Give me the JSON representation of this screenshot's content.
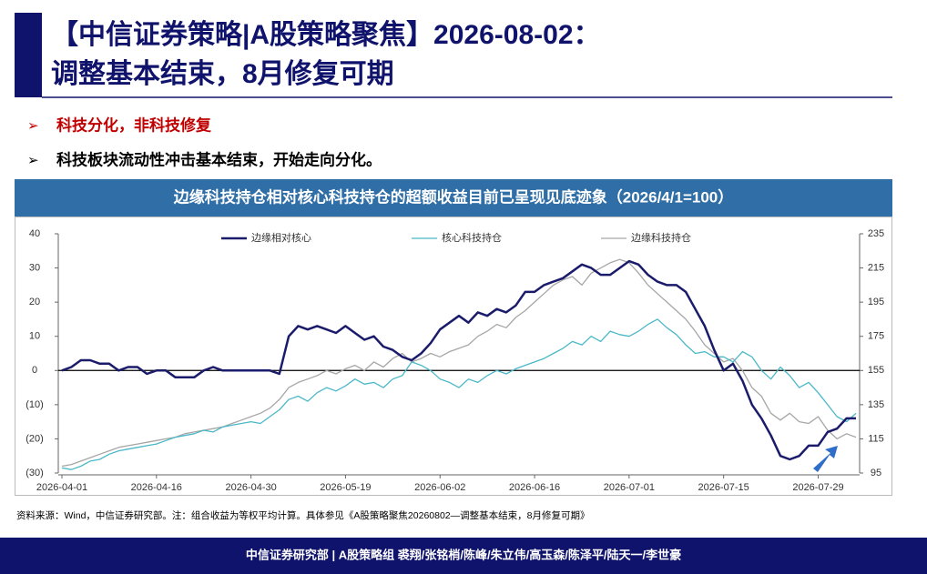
{
  "header": {
    "title": [
      "【中信证券策略|A股策略聚焦】2026-08-02：",
      "调整基本结束，8月修复可期"
    ]
  },
  "bullets": [
    "科技分化，非科技修复",
    "科技板块流动性冲击基本结束，开始走向分化。"
  ],
  "chart_data": {
    "type": "line",
    "title": "边缘科技持仓相对核心科技持仓的超额收益目前已呈现见底迹象（2026/4/1=100）",
    "categories": [
      "2026-04-01",
      null,
      null,
      null,
      null,
      null,
      null,
      null,
      null,
      null,
      "2026-04-16",
      null,
      null,
      null,
      null,
      null,
      null,
      null,
      null,
      null,
      "2026-04-30",
      null,
      null,
      null,
      null,
      null,
      null,
      null,
      null,
      null,
      "2026-05-19",
      null,
      null,
      null,
      null,
      null,
      null,
      null,
      null,
      null,
      "2026-06-02",
      null,
      null,
      null,
      null,
      null,
      null,
      null,
      null,
      null,
      "2026-06-16",
      null,
      null,
      null,
      null,
      null,
      null,
      null,
      null,
      null,
      "2026-07-01",
      null,
      null,
      null,
      null,
      null,
      null,
      null,
      null,
      null,
      "2026-07-15",
      null,
      null,
      null,
      null,
      null,
      null,
      null,
      null,
      null,
      "2026-07-29",
      null,
      null,
      null,
      null
    ],
    "series": [
      {
        "name": "边缘相对核心",
        "color": "#1b1b6b",
        "values": [
          0,
          1,
          3,
          3,
          2,
          2,
          0,
          1,
          1,
          -1,
          0,
          0,
          -2,
          -2,
          -2,
          0,
          1,
          0,
          0,
          0,
          0,
          0,
          0,
          -1,
          10,
          13,
          12,
          13,
          12,
          11,
          13,
          11,
          9,
          10,
          7,
          6,
          4,
          3,
          5,
          8,
          12,
          14,
          16,
          14,
          17,
          16,
          18,
          17,
          19,
          23,
          23,
          25,
          26,
          27,
          29,
          31,
          30,
          28,
          28,
          30,
          32,
          31,
          28,
          26,
          25,
          25,
          23,
          18,
          13,
          6,
          0,
          2,
          -3,
          -10,
          -14,
          -19,
          -25,
          -26,
          -25,
          -22,
          -22,
          -18,
          -17,
          -14,
          -14
        ]
      },
      {
        "name": "核心科技持仓",
        "color": "#4ab8c8",
        "axis": "y2",
        "values": [
          98,
          97,
          99,
          102,
          103,
          106,
          108,
          109,
          110,
          111,
          112,
          114,
          116,
          117,
          118,
          120,
          119,
          122,
          123,
          124,
          125,
          124,
          128,
          132,
          138,
          140,
          137,
          142,
          145,
          143,
          146,
          150,
          147,
          148,
          145,
          150,
          152,
          160,
          158,
          155,
          150,
          148,
          145,
          150,
          148,
          152,
          155,
          153,
          156,
          158,
          160,
          162,
          165,
          168,
          172,
          170,
          175,
          172,
          178,
          176,
          175,
          178,
          182,
          185,
          180,
          176,
          170,
          165,
          166,
          163,
          163,
          160,
          166,
          163,
          155,
          150,
          157,
          152,
          145,
          148,
          142,
          135,
          128,
          125,
          130
        ]
      },
      {
        "name": "边缘科技持仓",
        "color": "#a6a6a6",
        "axis": "y2",
        "values": [
          99,
          100,
          102,
          104,
          106,
          108,
          110,
          111,
          112,
          113,
          114,
          115,
          116,
          118,
          119,
          120,
          121,
          122,
          124,
          126,
          128,
          130,
          133,
          138,
          145,
          148,
          150,
          152,
          155,
          153,
          156,
          158,
          155,
          160,
          157,
          162,
          165,
          160,
          162,
          165,
          163,
          166,
          168,
          170,
          175,
          178,
          182,
          180,
          186,
          190,
          195,
          200,
          205,
          208,
          210,
          205,
          212,
          215,
          218,
          220,
          218,
          212,
          205,
          200,
          195,
          190,
          185,
          178,
          170,
          165,
          160,
          162,
          155,
          145,
          140,
          130,
          126,
          130,
          125,
          124,
          128,
          120,
          115,
          118,
          116
        ]
      }
    ],
    "ylim": [
      -30,
      40
    ],
    "yticks": [
      40,
      30,
      20,
      10,
      0,
      {
        "value": -10,
        "label": "(10)"
      },
      {
        "value": -20,
        "label": "(20)"
      },
      {
        "value": -30,
        "label": "(30)"
      }
    ],
    "y2lim": [
      95,
      235
    ],
    "y2ticks": [
      235,
      215,
      195,
      175,
      155,
      135,
      115,
      95
    ]
  },
  "source": "资料来源：Wind，中信证券研究部。注：组合收益为等权平均计算。具体参见《A股策略聚焦20260802—调整基本结束，8月修复可期》",
  "footer": "中信证券研究部 | A股策略组 裘翔/张铭梢/陈峰/朱立伟/高玉森/陈泽平/陆天一/李世豪"
}
